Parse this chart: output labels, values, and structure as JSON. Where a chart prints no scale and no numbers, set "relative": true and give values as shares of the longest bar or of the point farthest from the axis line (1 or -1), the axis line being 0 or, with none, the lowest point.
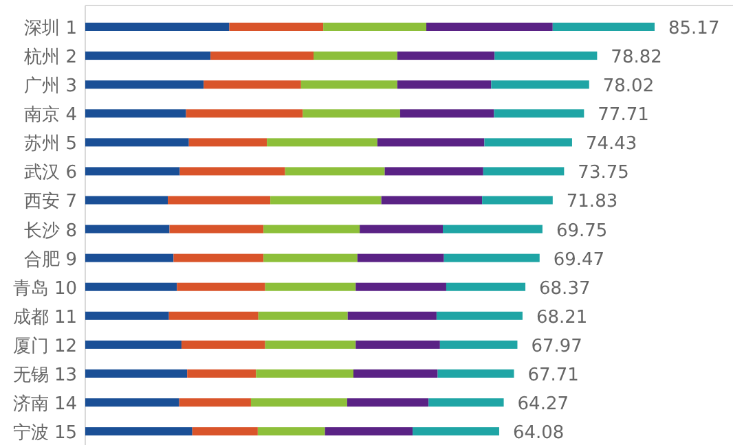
{
  "chart_data": {
    "type": "bar",
    "orientation": "horizontal",
    "stacked": true,
    "relative": true,
    "categories": [
      "深圳 1",
      "杭州 2",
      "广州 3",
      "南京 4",
      "苏州 5",
      "武汉 6",
      "西安 7",
      "长沙 8",
      "合肥 9",
      "青岛 10",
      "成都 11",
      "厦门 12",
      "无锡 13",
      "济南 14",
      "宁波 15"
    ],
    "series": [
      {
        "color": "#1a4f96",
        "values": [
          0.253,
          0.22,
          0.208,
          0.177,
          0.182,
          0.166,
          0.145,
          0.148,
          0.155,
          0.161,
          0.147,
          0.169,
          0.179,
          0.165,
          0.188
        ]
      },
      {
        "color": "#d9542a",
        "values": [
          0.165,
          0.181,
          0.171,
          0.205,
          0.137,
          0.185,
          0.18,
          0.165,
          0.158,
          0.155,
          0.157,
          0.147,
          0.121,
          0.126,
          0.115
        ]
      },
      {
        "color": "#8dbf3a",
        "values": [
          0.181,
          0.147,
          0.169,
          0.171,
          0.194,
          0.175,
          0.195,
          0.169,
          0.165,
          0.159,
          0.157,
          0.159,
          0.171,
          0.169,
          0.118
        ]
      },
      {
        "color": "#5a2285",
        "values": [
          0.222,
          0.171,
          0.165,
          0.165,
          0.188,
          0.173,
          0.177,
          0.146,
          0.152,
          0.159,
          0.156,
          0.148,
          0.148,
          0.143,
          0.154
        ]
      },
      {
        "color": "#1fa5a5",
        "values": [
          0.179,
          0.18,
          0.172,
          0.158,
          0.154,
          0.142,
          0.124,
          0.175,
          0.168,
          0.139,
          0.151,
          0.136,
          0.134,
          0.132,
          0.152
        ]
      }
    ],
    "annotations": [
      {
        "text": "85.17",
        "x": 1.0,
        "y": "深圳 1"
      },
      {
        "text": "78.82",
        "x": 0.899,
        "y": "杭州 2"
      },
      {
        "text": "78.02",
        "x": 0.885,
        "y": "广州 3"
      },
      {
        "text": "77.71",
        "x": 0.876,
        "y": "南京 4"
      },
      {
        "text": "74.43",
        "x": 0.855,
        "y": "苏州 5"
      },
      {
        "text": "73.75",
        "x": 0.841,
        "y": "武汉 6"
      },
      {
        "text": "71.83",
        "x": 0.821,
        "y": "西安 7"
      },
      {
        "text": "69.75",
        "x": 0.803,
        "y": "长沙 8"
      },
      {
        "text": "69.47",
        "x": 0.798,
        "y": "合肥 9"
      },
      {
        "text": "68.37",
        "x": 0.773,
        "y": "青岛 10"
      },
      {
        "text": "68.21",
        "x": 0.768,
        "y": "成都 11"
      },
      {
        "text": "67.97",
        "x": 0.759,
        "y": "厦门 12"
      },
      {
        "text": "67.71",
        "x": 0.753,
        "y": "无锡 13"
      },
      {
        "text": "64.27",
        "x": 0.735,
        "y": "济南 14"
      },
      {
        "text": "64.08",
        "x": 0.727,
        "y": "宁波 15"
      }
    ]
  }
}
